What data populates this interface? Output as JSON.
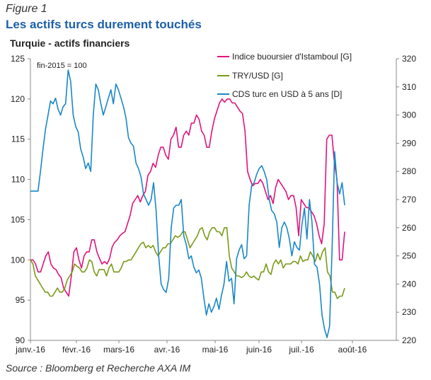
{
  "figure_label": "Figure 1",
  "title": "Les actifs turcs durement touchés",
  "subtitle": "Turquie - actifs financiers",
  "source": "Source  : Bloomberg et Recherche AXA IM",
  "chart_data": {
    "type": "line",
    "annotation": "fin-2015 = 100",
    "x_labels": [
      "janv.-16",
      "févr.-16",
      "mars-16",
      "avr.-16",
      "mai-16",
      "juin-16",
      "juil.-16",
      "août-16"
    ],
    "left_axis": {
      "min": 90,
      "max": 125,
      "ticks": [
        90,
        95,
        100,
        105,
        110,
        115,
        120,
        125
      ]
    },
    "right_axis": {
      "min": 220,
      "max": 320,
      "ticks": [
        220,
        230,
        240,
        250,
        260,
        270,
        280,
        290,
        300,
        310,
        320
      ]
    },
    "legend_position": "top-right",
    "series": [
      {
        "name": "Indice buoursier d'Istamboul [G]",
        "axis": "left",
        "color": "#e0137c",
        "values": [
          100,
          100,
          99.5,
          98.5,
          98.5,
          99.5,
          100.5,
          101,
          99.5,
          99,
          98.8,
          98.2,
          97.8,
          96.5,
          96,
          95.5,
          98,
          101,
          101.5,
          100,
          99,
          100.5,
          101,
          101,
          102.5,
          102.5,
          101,
          100.2,
          99.5,
          99.8,
          99.5,
          100.2,
          101.6,
          102.2,
          102.5,
          103,
          103.3,
          103.5,
          104.5,
          105.5,
          107,
          107.5,
          108,
          107.2,
          108,
          108.5,
          110.5,
          111,
          112,
          111.5,
          113,
          114,
          114,
          113,
          112.5,
          115,
          115.5,
          116.5,
          114,
          114,
          115.5,
          116,
          115.5,
          117,
          117,
          118,
          117.5,
          116,
          115.5,
          114,
          114,
          116,
          117.5,
          118.5,
          119.5,
          120,
          119.6,
          120,
          120,
          119.5,
          119.5,
          119,
          118.5,
          118.2,
          116,
          111,
          110,
          109.2,
          109.5,
          109.5,
          110,
          109.5,
          108.5,
          107.5,
          108,
          107,
          109,
          110,
          109.5,
          109,
          108.5,
          107.5,
          108,
          108,
          106.5,
          103,
          107.5,
          107,
          106.5,
          106.5,
          106,
          105.5,
          104.5,
          103,
          102,
          104.5,
          115,
          115.5,
          115.5,
          112,
          110,
          100,
          100,
          103.5
        ]
      },
      {
        "name": "TRY/USD [G]",
        "axis": "left",
        "color": "#7a9a1a",
        "values": [
          100,
          99.5,
          98,
          97.5,
          97,
          96.5,
          96,
          96,
          95.5,
          95.5,
          96,
          96.5,
          96,
          96,
          96.5,
          97.5,
          98,
          98.5,
          99.5,
          99.2,
          99,
          98.5,
          98.5,
          99,
          100,
          99.8,
          98.5,
          98,
          98.8,
          98.8,
          98.8,
          98,
          99,
          99.5,
          98.5,
          98.5,
          98.5,
          99,
          99.8,
          99.8,
          100,
          100,
          100.5,
          101,
          101.5,
          102,
          102.2,
          101.5,
          101.8,
          101.5,
          101.8,
          101,
          100.5,
          101,
          101.5,
          101.5,
          102,
          102,
          102.5,
          103,
          102.8,
          103,
          103.5,
          103.5,
          102.5,
          101.5,
          102,
          102.5,
          103,
          103.8,
          104,
          103,
          102.5,
          103.5,
          104,
          104,
          103.5,
          103.5,
          103,
          104,
          104,
          100.5,
          99,
          98.5,
          98,
          98,
          97.8,
          98,
          98.5,
          98,
          97.8,
          98,
          97.7,
          97.5,
          98.5,
          98.5,
          99.5,
          98.5,
          98.2,
          99.5,
          100,
          99.5,
          100,
          99,
          99.5,
          99.5,
          99.5,
          99.8,
          99.8,
          99.5,
          100.5,
          99.8,
          100,
          100,
          101,
          100.5,
          99.8,
          100.8,
          100,
          101,
          101.5,
          98.5,
          98,
          96,
          96,
          95.2,
          95.5,
          95.5,
          96.5
        ]
      },
      {
        "name": "CDS turc en USD à 5 ans [D]",
        "axis": "right",
        "color": "#1a87c8",
        "values": [
          273,
          273,
          273,
          273,
          280,
          288,
          295,
          300,
          305,
          304,
          306,
          302,
          300,
          303,
          304,
          316,
          312,
          300,
          296,
          294,
          288,
          285,
          281,
          283,
          280,
          300,
          311,
          309,
          304,
          300,
          303,
          306,
          309,
          304,
          311,
          309,
          306,
          303,
          299,
          292,
          290,
          289,
          283,
          281,
          278,
          272,
          270,
          268,
          270,
          276,
          266,
          250,
          240,
          238,
          237,
          242,
          260,
          267,
          268,
          268,
          270,
          257,
          254,
          249,
          250,
          246,
          244,
          245,
          242,
          235,
          229,
          233,
          230,
          232,
          235,
          231,
          236,
          240,
          248,
          241,
          242,
          233,
          249,
          252,
          254,
          249,
          250,
          268,
          275,
          276,
          279,
          281,
          282,
          280,
          277,
          270,
          266,
          265,
          262,
          253,
          260,
          262,
          260,
          256,
          250,
          255,
          253,
          252,
          261,
          267,
          256,
          270,
          262,
          247,
          246,
          240,
          229,
          224,
          221,
          225,
          252,
          287,
          276,
          272,
          276,
          268
        ]
      }
    ]
  }
}
